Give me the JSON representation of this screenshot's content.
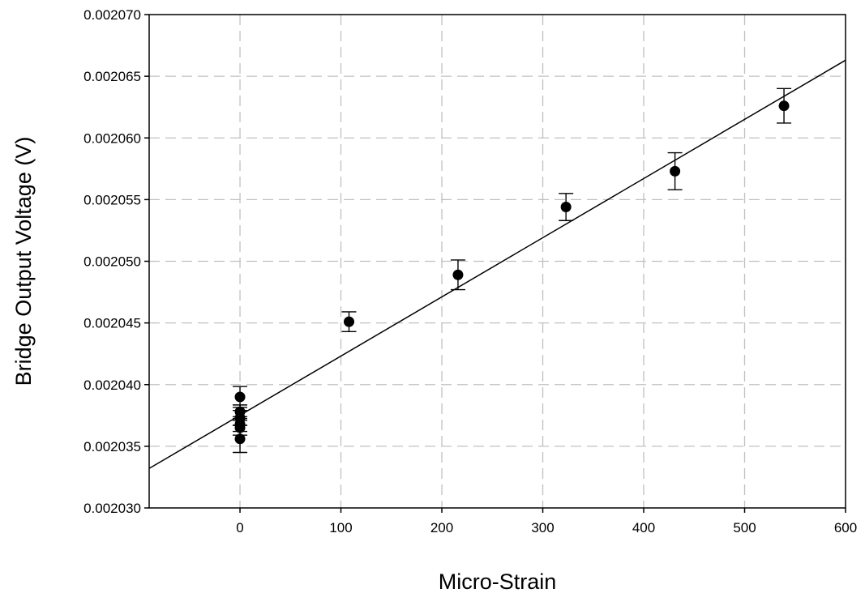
{
  "chart_data": {
    "type": "scatter",
    "xlabel": "Micro-Strain",
    "ylabel": "Bridge Output Voltage (V)",
    "xlim": [
      -90,
      600
    ],
    "ylim": [
      0.00203,
      0.00207
    ],
    "x_ticks": [
      0,
      100,
      200,
      300,
      400,
      500,
      600
    ],
    "x_tick_labels": [
      "0",
      "100",
      "200",
      "300",
      "400",
      "500",
      "600"
    ],
    "y_ticks": [
      0.00203,
      0.002035,
      0.00204,
      0.002045,
      0.00205,
      0.002055,
      0.00206,
      0.002065,
      0.00207
    ],
    "y_tick_labels": [
      "0.002030",
      "0.002035",
      "0.002040",
      "0.002045",
      "0.002050",
      "0.002055",
      "0.002060",
      "0.002065",
      "0.002070"
    ],
    "grid": true,
    "legend": "none",
    "points": [
      {
        "x": 0,
        "y": 0.002039,
        "err": 8.5e-07
      },
      {
        "x": 0,
        "y": 0.0020378,
        "err": 5.5e-07
      },
      {
        "x": 0,
        "y": 0.0020373,
        "err": 6e-07
      },
      {
        "x": 0,
        "y": 0.0020368,
        "err": 6e-07
      },
      {
        "x": 0,
        "y": 0.0020365,
        "err": 6e-07
      },
      {
        "x": 0,
        "y": 0.0020356,
        "err": 1.1e-06
      },
      {
        "x": 108,
        "y": 0.0020451,
        "err": 8e-07
      },
      {
        "x": 216,
        "y": 0.0020489,
        "err": 1.2e-06
      },
      {
        "x": 323,
        "y": 0.0020544,
        "err": 1.1e-06
      },
      {
        "x": 431,
        "y": 0.0020573,
        "err": 1.5e-06
      },
      {
        "x": 539,
        "y": 0.0020626,
        "err": 1.4e-06
      }
    ],
    "fit_line": {
      "x": [
        -90,
        600
      ],
      "y": [
        0.0020332,
        0.0020663
      ]
    },
    "colors": {
      "marker": "#000000",
      "line": "#000000",
      "grid": "#c0c0c0",
      "axis": "#000000"
    }
  }
}
